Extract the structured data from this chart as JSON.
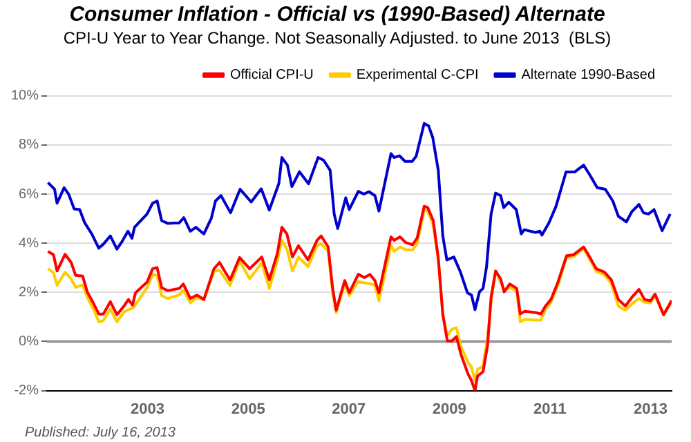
{
  "chart_data": {
    "type": "line",
    "title": "Consumer Inflation - Official vs (1990-Based) Alternate",
    "subtitle": "CPI-U Year to Year Change. Not Seasonally Adjusted. to June 2013  (BLS)",
    "annotations": [
      "Published: July 16, 2013"
    ],
    "xlim": [
      2001,
      2013.42
    ],
    "xticks": [
      2003,
      2005,
      2007,
      2009,
      2011,
      2013
    ],
    "ylim": [
      -2,
      10
    ],
    "yticks": [
      {
        "value": -2,
        "label": "-2%"
      },
      {
        "value": 0,
        "label": "0%"
      },
      {
        "value": 2,
        "label": "2%"
      },
      {
        "value": 4,
        "label": "4%"
      },
      {
        "value": 6,
        "label": "6%"
      },
      {
        "value": 8,
        "label": "8%"
      },
      {
        "value": 10,
        "label": "10%"
      }
    ],
    "grid": "y",
    "legend": "top right",
    "marker": "none",
    "ref_lines": [
      {
        "axis": "y",
        "value": 0,
        "color": "#999999"
      }
    ],
    "series": [
      {
        "name": "Official CPI-U",
        "color": "#ff0000",
        "x": [
          2001.02,
          2001.13,
          2001.2,
          2001.36,
          2001.48,
          2001.57,
          2001.71,
          2001.8,
          2001.93,
          2002.03,
          2002.12,
          2002.26,
          2002.39,
          2002.53,
          2002.62,
          2002.7,
          2002.76,
          2002.99,
          2003.1,
          2003.19,
          2003.28,
          2003.4,
          2003.63,
          2003.71,
          2003.85,
          2003.98,
          2004.12,
          2004.32,
          2004.43,
          2004.64,
          2004.83,
          2005.03,
          2005.27,
          2005.42,
          2005.58,
          2005.67,
          2005.77,
          2005.88,
          2006.0,
          2006.19,
          2006.37,
          2006.45,
          2006.59,
          2006.68,
          2006.75,
          2006.92,
          2007.01,
          2007.19,
          2007.31,
          2007.42,
          2007.52,
          2007.6,
          2007.84,
          2007.9,
          2008.02,
          2008.13,
          2008.27,
          2008.36,
          2008.5,
          2008.57,
          2008.68,
          2008.78,
          2008.87,
          2008.96,
          2009.05,
          2009.14,
          2009.23,
          2009.37,
          2009.44,
          2009.51,
          2009.56,
          2009.67,
          2009.76,
          2009.83,
          2009.92,
          2010.02,
          2010.09,
          2010.2,
          2010.34,
          2010.41,
          2010.5,
          2010.71,
          2010.82,
          2010.91,
          2011.02,
          2011.16,
          2011.33,
          2011.47,
          2011.67,
          2011.79,
          2011.92,
          2012.08,
          2012.22,
          2012.36,
          2012.5,
          2012.63,
          2012.77,
          2012.88,
          2013.0,
          2013.09,
          2013.26,
          2013.42
        ],
        "values": [
          3.67,
          3.53,
          2.87,
          3.55,
          3.22,
          2.69,
          2.66,
          2.02,
          1.53,
          1.12,
          1.12,
          1.62,
          1.09,
          1.44,
          1.71,
          1.48,
          1.98,
          2.42,
          2.96,
          3.01,
          2.19,
          2.07,
          2.16,
          2.34,
          1.75,
          1.89,
          1.71,
          2.96,
          3.22,
          2.5,
          3.42,
          2.96,
          3.44,
          2.51,
          3.58,
          4.65,
          4.38,
          3.44,
          3.9,
          3.32,
          4.12,
          4.3,
          3.85,
          2.16,
          1.27,
          2.48,
          1.98,
          2.74,
          2.6,
          2.73,
          2.48,
          1.98,
          4.26,
          4.12,
          4.26,
          4.03,
          3.94,
          4.21,
          5.51,
          5.45,
          4.92,
          3.4,
          1.09,
          0.02,
          0.02,
          0.2,
          -0.52,
          -1.32,
          -1.59,
          -2.0,
          -1.41,
          -1.23,
          -0.16,
          1.8,
          2.87,
          2.55,
          2.02,
          2.34,
          2.16,
          1.12,
          1.23,
          1.18,
          1.12,
          1.44,
          1.71,
          2.42,
          3.49,
          3.53,
          3.85,
          3.44,
          2.96,
          2.83,
          2.51,
          1.71,
          1.44,
          1.8,
          2.12,
          1.71,
          1.66,
          1.93,
          1.09,
          1.67
        ]
      },
      {
        "name": "Experimental C-CPI",
        "color": "#ffcc00",
        "x": [
          2001.02,
          2001.13,
          2001.2,
          2001.36,
          2001.48,
          2001.57,
          2001.71,
          2001.8,
          2001.93,
          2002.03,
          2002.12,
          2002.26,
          2002.39,
          2002.53,
          2002.62,
          2002.7,
          2002.76,
          2002.99,
          2003.1,
          2003.19,
          2003.28,
          2003.4,
          2003.63,
          2003.71,
          2003.85,
          2003.98,
          2004.12,
          2004.32,
          2004.43,
          2004.64,
          2004.83,
          2005.03,
          2005.27,
          2005.42,
          2005.58,
          2005.67,
          2005.77,
          2005.88,
          2006.0,
          2006.19,
          2006.37,
          2006.45,
          2006.59,
          2006.68,
          2006.75,
          2006.92,
          2007.01,
          2007.19,
          2007.31,
          2007.42,
          2007.52,
          2007.6,
          2007.84,
          2007.9,
          2008.02,
          2008.13,
          2008.27,
          2008.36,
          2008.5,
          2008.57,
          2008.68,
          2008.78,
          2008.87,
          2008.96,
          2009.05,
          2009.14,
          2009.23,
          2009.37,
          2009.44,
          2009.51,
          2009.56,
          2009.67,
          2009.76,
          2009.83,
          2009.92,
          2010.02,
          2010.09,
          2010.2,
          2010.34,
          2010.41,
          2010.5,
          2010.71,
          2010.82,
          2010.91,
          2011.02,
          2011.16,
          2011.33,
          2011.47,
          2011.67,
          2011.79,
          2011.92,
          2012.08,
          2012.22,
          2012.36,
          2012.5,
          2012.63,
          2012.77,
          2012.88,
          2013.0,
          2013.09,
          2013.26,
          2013.42
        ],
        "values": [
          2.96,
          2.8,
          2.29,
          2.82,
          2.55,
          2.2,
          2.3,
          1.8,
          1.3,
          0.8,
          0.85,
          1.33,
          0.8,
          1.2,
          1.3,
          1.35,
          1.5,
          2.19,
          2.73,
          2.69,
          1.87,
          1.75,
          1.9,
          2.1,
          1.57,
          1.78,
          1.7,
          2.85,
          2.9,
          2.28,
          3.28,
          2.55,
          3.2,
          2.16,
          3.3,
          4.12,
          3.76,
          2.87,
          3.44,
          3.05,
          3.9,
          3.98,
          3.67,
          1.98,
          1.18,
          2.34,
          1.87,
          2.44,
          2.39,
          2.35,
          2.3,
          1.66,
          3.92,
          3.67,
          3.85,
          3.73,
          3.73,
          3.99,
          5.35,
          5.3,
          4.74,
          3.3,
          1.12,
          0.23,
          0.5,
          0.56,
          -0.21,
          -0.84,
          -1.04,
          -1.59,
          -1.14,
          -1.0,
          0.18,
          1.6,
          2.87,
          2.42,
          2.1,
          2.2,
          2.05,
          0.8,
          0.9,
          0.87,
          0.87,
          1.3,
          1.6,
          2.3,
          3.41,
          3.46,
          3.78,
          3.35,
          2.85,
          2.73,
          2.35,
          1.44,
          1.27,
          1.53,
          1.75,
          1.6,
          1.57,
          1.87,
          1.09,
          1.6
        ]
      },
      {
        "name": "Alternate 1990-Based",
        "color": "#0000cc",
        "x": [
          2001.02,
          2001.15,
          2001.2,
          2001.34,
          2001.43,
          2001.54,
          2001.65,
          2001.75,
          2001.89,
          2002.03,
          2002.12,
          2002.26,
          2002.39,
          2002.48,
          2002.61,
          2002.69,
          2002.74,
          2002.99,
          2003.1,
          2003.19,
          2003.28,
          2003.4,
          2003.63,
          2003.72,
          2003.85,
          2003.96,
          2004.12,
          2004.27,
          2004.35,
          2004.46,
          2004.65,
          2004.79,
          2004.84,
          2005.06,
          2005.26,
          2005.42,
          2005.61,
          2005.67,
          2005.78,
          2005.87,
          2006.02,
          2006.2,
          2006.39,
          2006.5,
          2006.63,
          2006.71,
          2006.78,
          2006.94,
          2007.01,
          2007.19,
          2007.3,
          2007.4,
          2007.52,
          2007.6,
          2007.84,
          2007.9,
          2008.01,
          2008.12,
          2008.26,
          2008.34,
          2008.5,
          2008.59,
          2008.67,
          2008.78,
          2008.87,
          2008.95,
          2009.09,
          2009.22,
          2009.36,
          2009.44,
          2009.51,
          2009.6,
          2009.67,
          2009.74,
          2009.83,
          2009.92,
          2010.02,
          2010.08,
          2010.18,
          2010.33,
          2010.43,
          2010.49,
          2010.71,
          2010.8,
          2010.84,
          2010.98,
          2011.12,
          2011.32,
          2011.49,
          2011.67,
          2011.79,
          2011.94,
          2012.1,
          2012.25,
          2012.36,
          2012.52,
          2012.63,
          2012.77,
          2012.86,
          2012.96,
          2013.07,
          2013.23,
          2013.39
        ],
        "values": [
          6.47,
          6.2,
          5.63,
          6.26,
          6.0,
          5.4,
          5.37,
          4.83,
          4.38,
          3.8,
          3.96,
          4.3,
          3.76,
          4.03,
          4.49,
          4.2,
          4.65,
          5.19,
          5.63,
          5.72,
          4.92,
          4.81,
          4.83,
          5.04,
          4.49,
          4.65,
          4.38,
          5.03,
          5.72,
          5.94,
          5.24,
          5.95,
          6.2,
          5.68,
          6.22,
          5.35,
          6.43,
          7.49,
          7.18,
          6.31,
          6.91,
          6.42,
          7.49,
          7.38,
          6.97,
          5.19,
          4.6,
          5.85,
          5.37,
          6.11,
          6.0,
          6.1,
          5.94,
          5.31,
          7.65,
          7.49,
          7.56,
          7.33,
          7.33,
          7.54,
          8.88,
          8.77,
          8.3,
          6.97,
          4.3,
          3.32,
          3.44,
          2.83,
          1.98,
          1.89,
          1.3,
          2.03,
          2.16,
          3.05,
          5.19,
          6.04,
          5.94,
          5.45,
          5.67,
          5.37,
          4.38,
          4.55,
          4.44,
          4.49,
          4.33,
          4.83,
          5.5,
          6.9,
          6.9,
          7.18,
          6.79,
          6.26,
          6.2,
          5.72,
          5.1,
          4.87,
          5.29,
          5.58,
          5.24,
          5.19,
          5.37,
          4.51,
          5.19
        ]
      }
    ]
  }
}
